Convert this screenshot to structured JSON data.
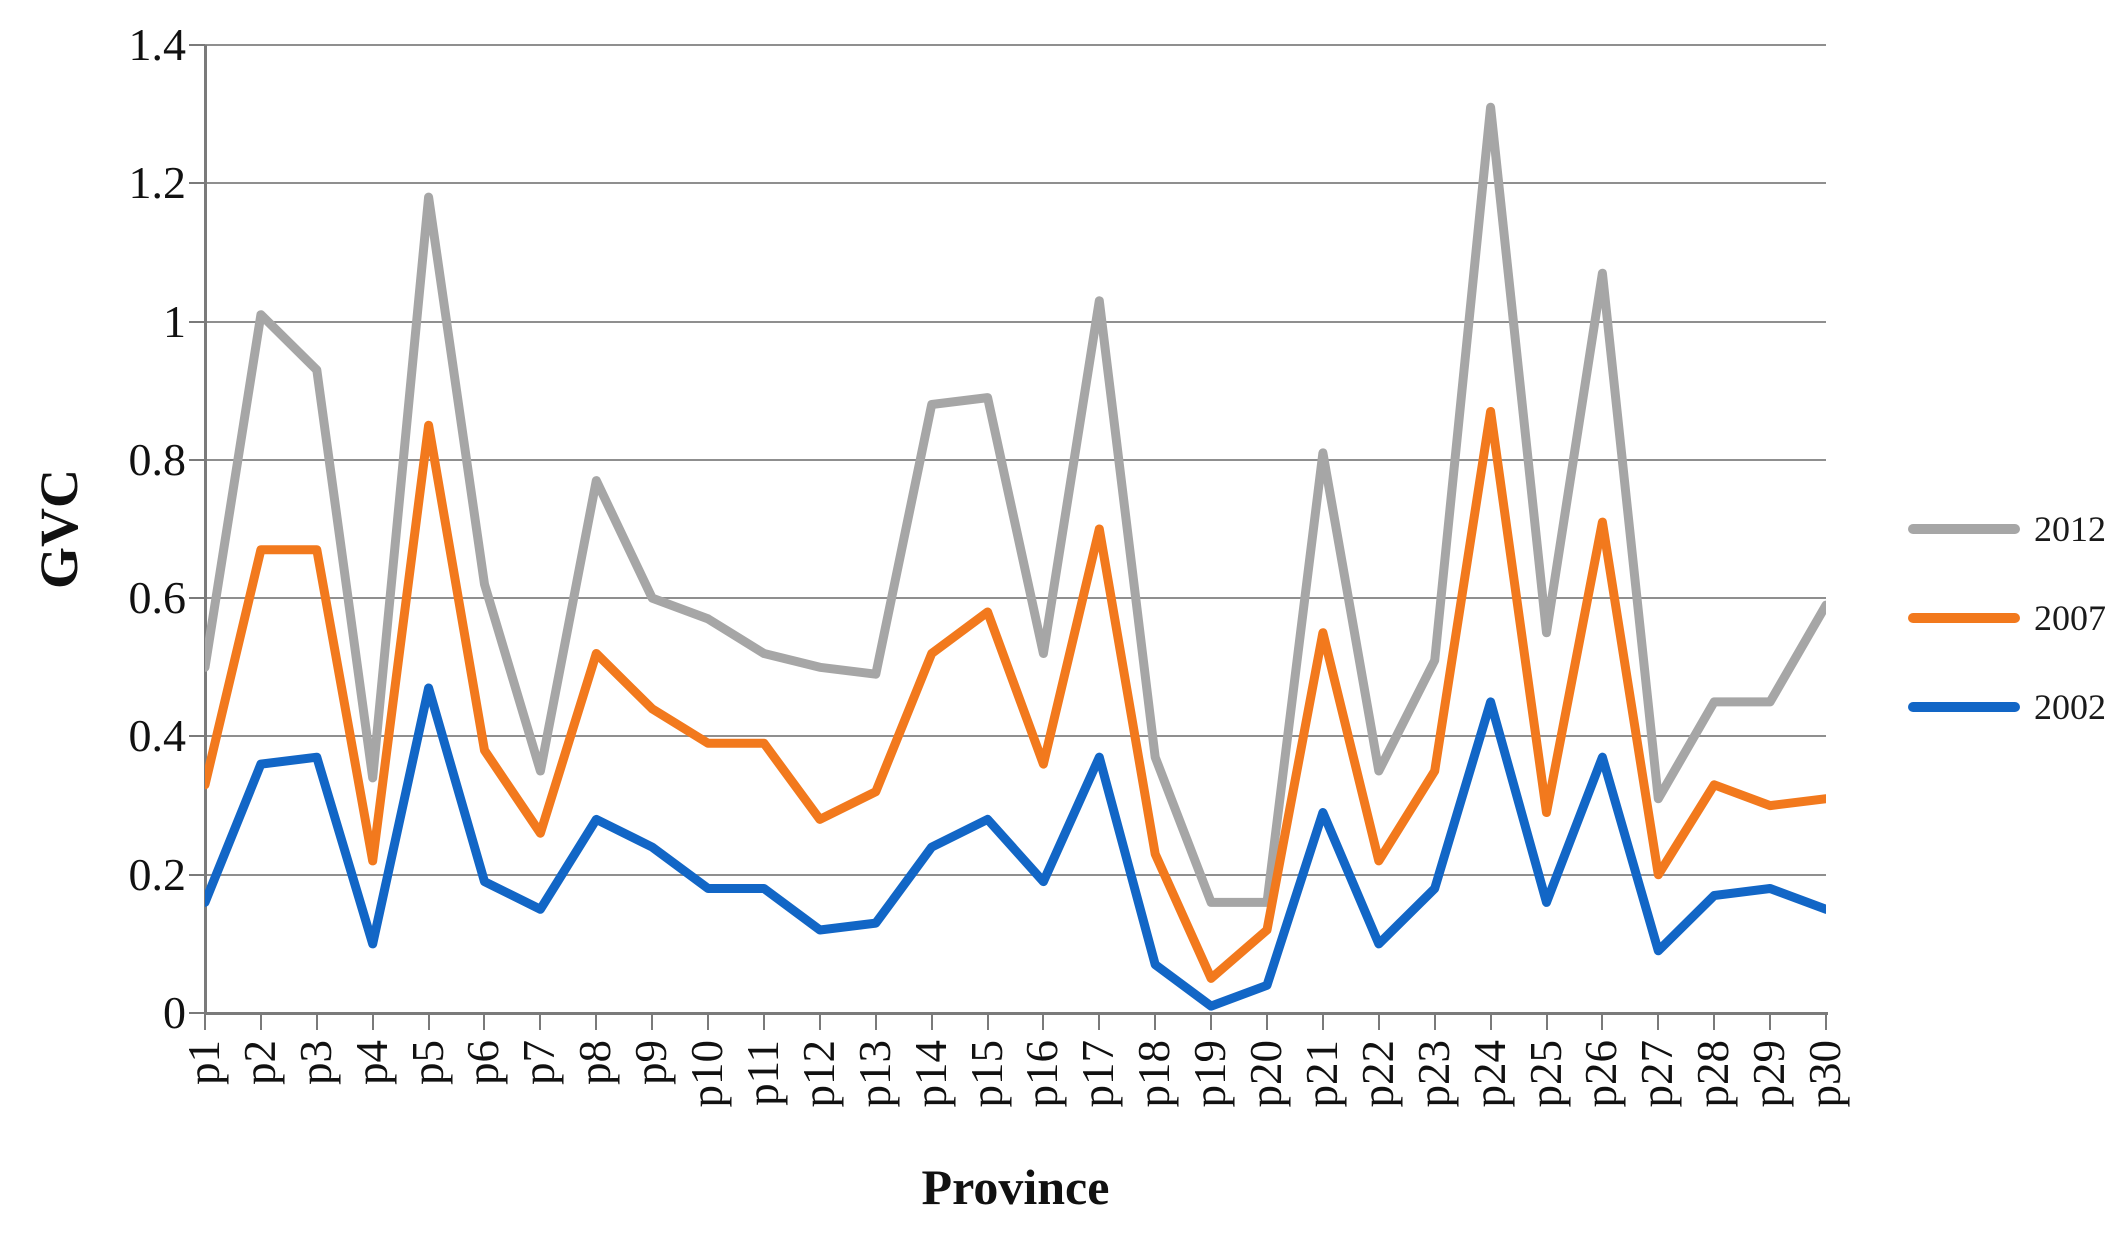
{
  "chart_data": {
    "type": "line",
    "title": "",
    "xlabel": "Province",
    "ylabel": "GVC",
    "categories": [
      "p1",
      "p2",
      "p3",
      "p4",
      "p5",
      "p6",
      "p7",
      "p8",
      "p9",
      "p10",
      "p11",
      "p12",
      "p13",
      "p14",
      "p15",
      "p16",
      "p17",
      "p18",
      "p19",
      "p20",
      "p21",
      "p22",
      "p23",
      "p24",
      "p25",
      "p26",
      "p27",
      "p28",
      "p29",
      "p30"
    ],
    "series": [
      {
        "name": "2012",
        "color": "#A6A6A6",
        "values": [
          0.5,
          1.01,
          0.93,
          0.34,
          1.18,
          0.62,
          0.35,
          0.77,
          0.6,
          0.57,
          0.52,
          0.5,
          0.49,
          0.88,
          0.89,
          0.52,
          1.03,
          0.37,
          0.16,
          0.16,
          0.81,
          0.35,
          0.51,
          1.31,
          0.55,
          1.07,
          0.31,
          0.45,
          0.45,
          0.59
        ]
      },
      {
        "name": "2007",
        "color": "#F2791D",
        "values": [
          0.33,
          0.67,
          0.67,
          0.22,
          0.85,
          0.38,
          0.26,
          0.52,
          0.44,
          0.39,
          0.39,
          0.28,
          0.32,
          0.52,
          0.58,
          0.36,
          0.7,
          0.23,
          0.05,
          0.12,
          0.55,
          0.22,
          0.35,
          0.87,
          0.29,
          0.71,
          0.2,
          0.33,
          0.3,
          0.31
        ]
      },
      {
        "name": "2002",
        "color": "#1266C6",
        "values": [
          0.16,
          0.36,
          0.37,
          0.1,
          0.47,
          0.19,
          0.15,
          0.28,
          0.24,
          0.18,
          0.18,
          0.12,
          0.13,
          0.24,
          0.28,
          0.19,
          0.37,
          0.07,
          0.01,
          0.04,
          0.29,
          0.1,
          0.18,
          0.45,
          0.16,
          0.37,
          0.09,
          0.17,
          0.18,
          0.15
        ]
      }
    ],
    "ylim": [
      0,
      1.4
    ],
    "y_tick_labels": [
      "0",
      "0.2",
      "0.4",
      "0.6",
      "0.8",
      "1",
      "1.2",
      "1.4"
    ],
    "grid": "horizontal",
    "legend_position": "right",
    "x_tick_label_rotation": -90
  }
}
